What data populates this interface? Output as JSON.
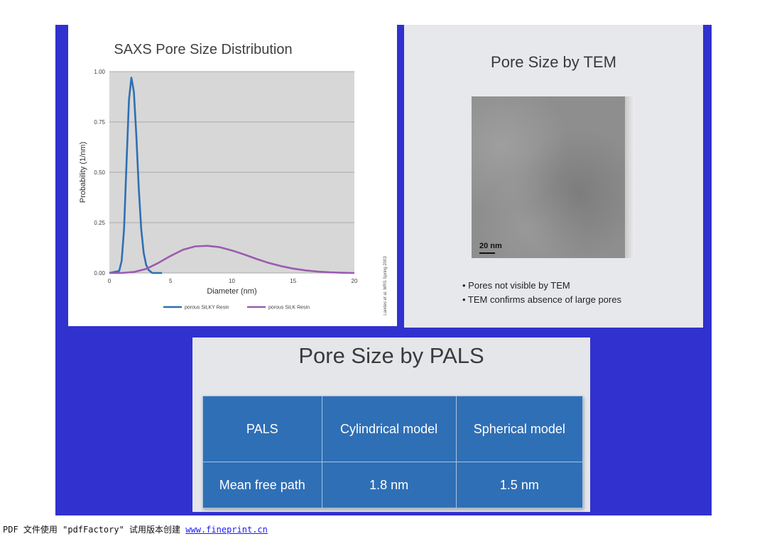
{
  "saxs": {
    "title": "SAXS Pore Size Distribution",
    "credit": "Landes et al. MRS Spring 2003"
  },
  "chart_data": {
    "type": "line",
    "title": "SAXS Pore Size Distribution",
    "xlabel": "Diameter (nm)",
    "ylabel": "Probability (1/nm)",
    "xlim": [
      0,
      20
    ],
    "ylim": [
      0,
      1
    ],
    "x_ticks": [
      "0",
      "5",
      "10",
      "15",
      "20"
    ],
    "y_ticks": [
      "0.00",
      "0.25",
      "0.50",
      "0.75",
      "1.00"
    ],
    "grid": true,
    "legend": "bottom",
    "series": [
      {
        "name": "porous SiLKY Resin",
        "color": "#2f6fb3",
        "x": [
          0,
          0.8,
          1.0,
          1.2,
          1.4,
          1.6,
          1.8,
          2.0,
          2.2,
          2.4,
          2.6,
          2.8,
          3.0,
          3.2,
          3.5,
          4.3
        ],
        "y": [
          0.0,
          0.01,
          0.06,
          0.22,
          0.55,
          0.86,
          0.97,
          0.9,
          0.68,
          0.42,
          0.22,
          0.1,
          0.04,
          0.015,
          0.0,
          0.0
        ]
      },
      {
        "name": "porous SiLK Resin",
        "color": "#9b5bb0",
        "x": [
          0,
          1,
          2,
          3,
          4,
          5,
          6,
          7,
          8,
          9,
          10,
          11,
          12,
          13,
          14,
          15,
          16,
          17,
          18,
          19,
          20
        ],
        "y": [
          0.0,
          0.0,
          0.005,
          0.02,
          0.05,
          0.085,
          0.115,
          0.132,
          0.135,
          0.128,
          0.112,
          0.092,
          0.07,
          0.05,
          0.034,
          0.022,
          0.013,
          0.007,
          0.003,
          0.001,
          0.0
        ]
      }
    ]
  },
  "tem": {
    "title": "Pore Size by TEM",
    "scale_label": "20 nm",
    "bullets": [
      "• Pores not visible by TEM",
      "• TEM confirms absence of large pores"
    ]
  },
  "pals": {
    "title": "Pore Size by PALS",
    "table": {
      "headers": [
        "PALS",
        "Cylindrical model",
        "Spherical model"
      ],
      "rows": [
        [
          "Mean free path",
          "1.8 nm",
          "1.5 nm"
        ]
      ]
    }
  },
  "footer": {
    "text": "PDF 文件使用 \"pdfFactory\" 试用版本创建 ",
    "link": "www.fineprint.cn"
  },
  "colors": {
    "background_blue": "#3131cf",
    "table_blue": "#2f6fb6"
  }
}
